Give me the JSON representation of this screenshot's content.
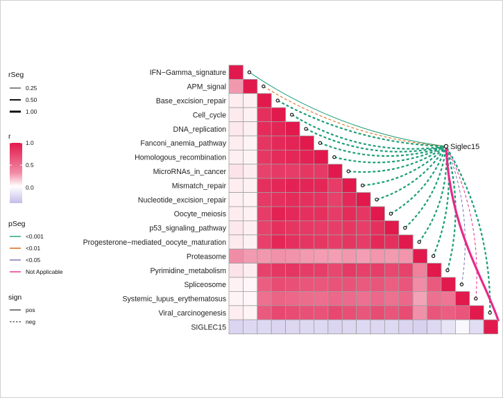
{
  "chart_data": {
    "type": "heatmap",
    "target": "Siglec15",
    "rows": [
      "IFN−Gamma_signature",
      "APM_signal",
      "Base_excision_repair",
      "Cell_cycle",
      "DNA_replication",
      "Fanconi_anemia_pathway",
      "Homologous_recombination",
      "MicroRNAs_in_cancer",
      "Mismatch_repair",
      "Nucleotide_excision_repair",
      "Oocyte_meiosis",
      "p53_signaling_pathway",
      "Progesterone−mediated_oocyte_maturation",
      "Proteasome",
      "Pyrimidine_metabolism",
      "Spliceosome",
      "Systemic_lupus_erythematosus",
      "Viral_carcinogenesis",
      "SIGLEC15"
    ],
    "matrix": [
      [
        1.0
      ],
      [
        0.45,
        1.0
      ],
      [
        0.08,
        0.06,
        1.0
      ],
      [
        0.09,
        0.06,
        0.9,
        1.0
      ],
      [
        0.1,
        0.07,
        0.92,
        0.95,
        1.0
      ],
      [
        0.08,
        0.05,
        0.88,
        0.93,
        0.95,
        1.0
      ],
      [
        0.07,
        0.05,
        0.87,
        0.92,
        0.94,
        0.96,
        1.0
      ],
      [
        0.12,
        0.08,
        0.82,
        0.86,
        0.85,
        0.87,
        0.86,
        1.0
      ],
      [
        0.08,
        0.06,
        0.9,
        0.94,
        0.96,
        0.95,
        0.94,
        0.85,
        1.0
      ],
      [
        0.07,
        0.05,
        0.86,
        0.9,
        0.92,
        0.9,
        0.89,
        0.83,
        0.93,
        1.0
      ],
      [
        0.08,
        0.06,
        0.85,
        0.96,
        0.93,
        0.9,
        0.9,
        0.85,
        0.92,
        0.87,
        1.0
      ],
      [
        0.1,
        0.07,
        0.82,
        0.9,
        0.88,
        0.86,
        0.85,
        0.84,
        0.87,
        0.84,
        0.9,
        1.0
      ],
      [
        0.09,
        0.06,
        0.83,
        0.94,
        0.9,
        0.88,
        0.87,
        0.85,
        0.88,
        0.85,
        0.93,
        0.9,
        1.0
      ],
      [
        0.5,
        0.44,
        0.45,
        0.48,
        0.47,
        0.44,
        0.43,
        0.42,
        0.45,
        0.42,
        0.46,
        0.44,
        0.46,
        1.0
      ],
      [
        0.12,
        0.08,
        0.82,
        0.87,
        0.88,
        0.85,
        0.84,
        0.8,
        0.86,
        0.83,
        0.84,
        0.8,
        0.82,
        0.55,
        1.0
      ],
      [
        0.06,
        0.04,
        0.7,
        0.78,
        0.76,
        0.74,
        0.73,
        0.75,
        0.75,
        0.72,
        0.74,
        0.7,
        0.74,
        0.5,
        0.72,
        1.0
      ],
      [
        0.05,
        0.04,
        0.62,
        0.68,
        0.66,
        0.64,
        0.63,
        0.66,
        0.65,
        0.62,
        0.66,
        0.62,
        0.66,
        0.4,
        0.62,
        0.6,
        1.0
      ],
      [
        0.08,
        0.05,
        0.72,
        0.8,
        0.78,
        0.76,
        0.75,
        0.8,
        0.77,
        0.74,
        0.78,
        0.74,
        0.78,
        0.48,
        0.74,
        0.7,
        0.74,
        1.0
      ],
      [
        -0.22,
        -0.2,
        -0.2,
        -0.22,
        -0.21,
        -0.2,
        -0.2,
        -0.22,
        -0.21,
        -0.2,
        -0.21,
        -0.2,
        -0.22,
        -0.24,
        -0.2,
        -0.14,
        -0.04,
        -0.18,
        1.0
      ]
    ],
    "links": [
      {
        "row": "IFN−Gamma_signature",
        "r": 0.25,
        "p": "<0.001",
        "sign": "pos"
      },
      {
        "row": "APM_signal",
        "r": 0.25,
        "p": "<0.01",
        "sign": "neg"
      },
      {
        "row": "Base_excision_repair",
        "r": 0.5,
        "p": "<0.001",
        "sign": "neg"
      },
      {
        "row": "Cell_cycle",
        "r": 0.5,
        "p": "<0.001",
        "sign": "neg"
      },
      {
        "row": "DNA_replication",
        "r": 0.5,
        "p": "<0.001",
        "sign": "neg"
      },
      {
        "row": "Fanconi_anemia_pathway",
        "r": 0.5,
        "p": "<0.001",
        "sign": "neg"
      },
      {
        "row": "Homologous_recombination",
        "r": 0.5,
        "p": "<0.001",
        "sign": "neg"
      },
      {
        "row": "MicroRNAs_in_cancer",
        "r": 0.5,
        "p": "<0.001",
        "sign": "neg"
      },
      {
        "row": "Mismatch_repair",
        "r": 0.5,
        "p": "<0.001",
        "sign": "neg"
      },
      {
        "row": "Nucleotide_excision_repair",
        "r": 0.5,
        "p": "<0.001",
        "sign": "neg"
      },
      {
        "row": "Oocyte_meiosis",
        "r": 0.5,
        "p": "<0.001",
        "sign": "neg"
      },
      {
        "row": "p53_signaling_pathway",
        "r": 0.5,
        "p": "<0.001",
        "sign": "neg"
      },
      {
        "row": "Progesterone−mediated_oocyte_maturation",
        "r": 0.5,
        "p": "<0.001",
        "sign": "neg"
      },
      {
        "row": "Proteasome",
        "r": 0.5,
        "p": "<0.001",
        "sign": "neg"
      },
      {
        "row": "Pyrimidine_metabolism",
        "r": 0.5,
        "p": "<0.001",
        "sign": "neg"
      },
      {
        "row": "Spliceosome",
        "r": 0.25,
        "p": "<0.05",
        "sign": "neg"
      },
      {
        "row": "Systemic_lupus_erythematosus",
        "r": 0.25,
        "p": "Not Applicable",
        "sign": "neg"
      },
      {
        "row": "Viral_carcinogenesis",
        "r": 0.5,
        "p": "<0.001",
        "sign": "neg"
      },
      {
        "row": "SIGLEC15",
        "r": 1.0,
        "p": "Not Applicable",
        "sign": "pos"
      }
    ],
    "legends": {
      "rSeg": {
        "title": "rSeg",
        "items": [
          {
            "label": "0.25",
            "value": 0.25
          },
          {
            "label": "0.50",
            "value": 0.5
          },
          {
            "label": "1.00",
            "value": 1.0
          }
        ]
      },
      "r": {
        "title": "r",
        "ticks": [
          {
            "label": "1.0",
            "value": 1.0
          },
          {
            "label": "0.5",
            "value": 0.5
          },
          {
            "label": "0.0",
            "value": 0.0
          }
        ],
        "range": [
          -0.35,
          1.0
        ]
      },
      "pSeg": {
        "title": "pSeg",
        "items": [
          {
            "label": "<0.001",
            "color": "#1b9e77"
          },
          {
            "label": "<0.01",
            "color": "#d95f02"
          },
          {
            "label": "<0.05",
            "color": "#7570b3"
          },
          {
            "label": "Not Applicable",
            "color": "#e7298a"
          }
        ]
      },
      "sign": {
        "title": "sign",
        "items": [
          {
            "label": "pos",
            "dash": "solid"
          },
          {
            "label": "neg",
            "dash": "dashed"
          }
        ]
      }
    },
    "colors": {
      "high": "#e2194c",
      "mid": "#ffffff",
      "low": "#c6bce8",
      "cell_border": "#9e9e9e"
    }
  }
}
